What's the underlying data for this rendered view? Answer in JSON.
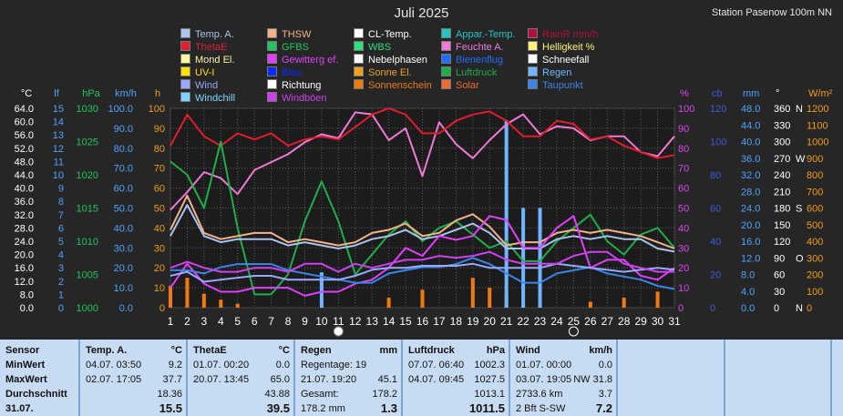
{
  "chart_data": {
    "type": "line",
    "title": "Juli 2025",
    "station": "Station Pasenow 100m NN",
    "x": [
      "1",
      "2",
      "3",
      "4",
      "5",
      "6",
      "7",
      "8",
      "9",
      "10",
      "11",
      "12",
      "13",
      "14",
      "15",
      "16",
      "17",
      "18",
      "19",
      "20",
      "21",
      "22",
      "23",
      "24",
      "25",
      "26",
      "27",
      "28",
      "29",
      "30",
      "31"
    ],
    "axes_left": [
      {
        "unit": "°C",
        "ticks": [
          "64.0",
          "60.0",
          "56.0",
          "52.0",
          "48.0",
          "44.0",
          "40.0",
          "36.0",
          "32.0",
          "28.0",
          "24.0",
          "20.0",
          "16.0",
          "12.0",
          "8.0",
          "0.0"
        ],
        "color": "#ffffff"
      },
      {
        "unit": "lf",
        "ticks": [
          "15",
          "14",
          "13",
          "12",
          "11",
          "10",
          "9",
          "8",
          "7",
          "6",
          "5",
          "4",
          "3",
          "2",
          "1",
          "0"
        ],
        "color": "#4fa3ff"
      },
      {
        "unit": "hPa",
        "ticks": [
          "1030",
          "1025",
          "1020",
          "1015",
          "1010",
          "1005",
          "1000"
        ],
        "color": "#22c55e"
      },
      {
        "unit": "km/h",
        "ticks": [
          "100.0",
          "90.0",
          "80.0",
          "70.0",
          "60.0",
          "50.0",
          "40.0",
          "30.0",
          "20.0",
          "10.0",
          "0.0"
        ],
        "color": "#4fa3ff"
      },
      {
        "unit": "h",
        "ticks": [
          "100",
          "90",
          "80",
          "70",
          "60",
          "50",
          "40",
          "30",
          "20",
          "10",
          "0"
        ],
        "color": "#f39c12"
      }
    ],
    "axes_right": [
      {
        "unit": "%",
        "ticks": [
          "100",
          "90",
          "80",
          "70",
          "60",
          "50",
          "40",
          "30",
          "20",
          "10",
          "0"
        ],
        "color": "#d946ef"
      },
      {
        "unit": "cb",
        "ticks": [
          "120",
          "100",
          "80",
          "60",
          "40",
          "20",
          "0"
        ],
        "color": "#3b5bdb"
      },
      {
        "unit": "mm",
        "ticks": [
          "48.0",
          "44.0",
          "40.0",
          "36.0",
          "32.0",
          "28.0",
          "24.0",
          "20.0",
          "16.0",
          "12.0",
          "8.0",
          "4.0",
          "0.0"
        ],
        "color": "#4fa3ff"
      },
      {
        "unit": "°",
        "ticks": [
          "360",
          "330",
          "300",
          "270",
          "240",
          "210",
          "180",
          "150",
          "120",
          "90",
          "60",
          "30",
          "0"
        ],
        "dirs": [
          "N",
          "",
          "",
          "W",
          "",
          "",
          "S",
          "",
          "",
          "O",
          "",
          "",
          "N"
        ],
        "color": "#ffffff"
      },
      {
        "unit": "W/m²",
        "ticks": [
          "1200",
          "1100",
          "1000",
          "900",
          "800",
          "700",
          "600",
          "500",
          "400",
          "300",
          "200",
          "100",
          "0"
        ],
        "color": "#f39c12"
      }
    ],
    "legend": [
      {
        "label": "Temp. A.",
        "color": "#a9c4ef"
      },
      {
        "label": "THSW",
        "color": "#f2b28a"
      },
      {
        "label": "CL-Temp.",
        "color": "#ffffff"
      },
      {
        "label": "Appar.-Temp.",
        "color": "#22c5c5"
      },
      {
        "label": "RainR mm/h",
        "color": "#b5103a"
      },
      {
        "label": "ThetaE",
        "color": "#e11d2e"
      },
      {
        "label": "GFBS",
        "color": "#22c55e"
      },
      {
        "label": "WBS",
        "color": "#2ee07a"
      },
      {
        "label": "Feuchte A.",
        "color": "#f07ad6"
      },
      {
        "label": "Helligkeit %",
        "color": "#fff27a"
      },
      {
        "label": "Mond El.",
        "color": "#fff6a0"
      },
      {
        "label": "Gewitterg ef.",
        "color": "#e040fb"
      },
      {
        "label": "Nebelphasen",
        "color": "#ffffff"
      },
      {
        "label": "Bienenflug",
        "color": "#1e6fff"
      },
      {
        "label": "Schneefall",
        "color": "#ffffff"
      },
      {
        "label": "UV-I",
        "color": "#ffe000"
      },
      {
        "label": "Blau",
        "color": "#0a2aff"
      },
      {
        "label": "Sonne El.",
        "color": "#f0a020"
      },
      {
        "label": "Luftdruck",
        "color": "#1fae4a"
      },
      {
        "label": "Regen",
        "color": "#6fb6ff"
      },
      {
        "label": "Wind",
        "color": "#9aa8ff"
      },
      {
        "label": "Richtung",
        "color": "#ffffff"
      },
      {
        "label": "Sonnenschein",
        "color": "#f07a10"
      },
      {
        "label": "Solar",
        "color": "#f06a30"
      },
      {
        "label": "Taupunkt",
        "color": "#3a86e8"
      },
      {
        "label": "Windchill",
        "color": "#7fd4ff"
      },
      {
        "label": "Windböen",
        "color": "#d040f0"
      }
    ],
    "series": [
      {
        "name": "Feuchte A.",
        "unit": "%",
        "axis": "%",
        "color": "#f07ad6",
        "values": [
          49,
          58,
          68,
          65,
          57,
          69,
          73,
          77,
          83,
          87,
          85,
          98,
          97,
          84,
          90,
          66,
          93,
          82,
          75,
          84,
          92,
          97,
          87,
          91,
          90,
          84,
          86,
          86,
          78,
          76,
          86
        ]
      },
      {
        "name": "ThetaE",
        "unit": "°C",
        "axis": "°C",
        "color": "#e11d2e",
        "values": [
          52,
          62,
          55,
          52,
          56,
          54,
          56,
          52,
          54,
          55,
          54,
          58,
          62,
          65,
          62,
          56,
          56,
          60,
          62,
          63,
          60,
          55,
          55,
          60,
          59,
          54,
          55,
          52,
          50,
          48,
          49
        ]
      },
      {
        "name": "Luftdruck",
        "unit": "hPa",
        "axis": "hPa",
        "color": "#1fae4a",
        "values": [
          1022,
          1020,
          1015,
          1025,
          1012,
          1002,
          1002,
          1005,
          1013,
          1019,
          1013,
          1005,
          1008,
          1011,
          1013,
          1010,
          1012,
          1013,
          1011,
          1009,
          1010,
          1007,
          1007,
          1010,
          1012,
          1014,
          1010,
          1008,
          1011,
          1012,
          1009
        ]
      },
      {
        "name": "Temp. A.",
        "unit": "°C",
        "axis": "°C",
        "color": "#a9c4ef",
        "values": [
          23,
          33,
          23,
          21,
          22,
          22,
          22,
          20,
          21,
          20,
          19,
          20,
          22,
          23,
          25,
          22,
          23,
          25,
          27,
          24,
          19,
          19,
          19,
          22,
          23,
          22,
          23,
          22,
          22,
          19,
          18
        ]
      },
      {
        "name": "THSW",
        "unit": "°C",
        "axis": "°C",
        "color": "#f2b28a",
        "values": [
          25,
          36,
          24,
          22,
          23,
          24,
          24,
          21,
          22,
          21,
          20,
          21,
          24,
          25,
          27,
          23,
          24,
          28,
          30,
          26,
          20,
          21,
          21,
          24,
          25,
          24,
          25,
          24,
          23,
          21,
          19
        ]
      },
      {
        "name": "Gewitterg ef.",
        "unit": "%",
        "axis": "%",
        "color": "#e040fb",
        "values": [
          10,
          22,
          12,
          8,
          8,
          10,
          10,
          10,
          6,
          8,
          8,
          12,
          14,
          20,
          30,
          26,
          36,
          34,
          36,
          46,
          44,
          30,
          30,
          40,
          46,
          20,
          24,
          24,
          16,
          14,
          20
        ]
      },
      {
        "name": "Taupunkt",
        "unit": "°C",
        "axis": "°C",
        "color": "#3a86e8",
        "values": [
          12,
          12,
          11,
          13,
          14,
          14,
          14,
          12,
          11,
          10,
          9,
          8,
          8,
          11,
          12,
          13,
          13,
          14,
          16,
          14,
          11,
          8,
          8,
          11,
          12,
          13,
          11,
          10,
          9,
          7,
          6
        ]
      },
      {
        "name": "Wind",
        "unit": "km/h",
        "axis": "km/h",
        "color": "#9aa8ff",
        "values": [
          16,
          18,
          13,
          14,
          15,
          16,
          16,
          14,
          14,
          14,
          14,
          16,
          19,
          20,
          20,
          21,
          21,
          21,
          22,
          20,
          20,
          20,
          20,
          22,
          21,
          20,
          19,
          18,
          19,
          20,
          19
        ]
      },
      {
        "name": "Windböen",
        "unit": "km/h",
        "axis": "km/h",
        "color": "#d040f0",
        "values": [
          20,
          23,
          20,
          18,
          18,
          20,
          20,
          18,
          22,
          22,
          18,
          22,
          20,
          22,
          24,
          24,
          26,
          25,
          26,
          28,
          24,
          22,
          22,
          22,
          26,
          28,
          28,
          22,
          20,
          18,
          18
        ]
      },
      {
        "name": "Sonnenschein",
        "unit": "h",
        "axis": "h",
        "color": "#f07a10",
        "bars": [
          11,
          15,
          7,
          4,
          2,
          0,
          0,
          0,
          0,
          0,
          0,
          0,
          0,
          5,
          0,
          9,
          0,
          0,
          15,
          10,
          7,
          1,
          4,
          0,
          0,
          3,
          0,
          5,
          0,
          8,
          0
        ]
      },
      {
        "name": "Regen",
        "unit": "mm",
        "axis": "mm",
        "color": "#6fb6ff",
        "bars": [
          0,
          0,
          0,
          0,
          0,
          0,
          0,
          0,
          0,
          8.5,
          0,
          0,
          0,
          0,
          0,
          0,
          0,
          0,
          0,
          0,
          45.1,
          24,
          24,
          0,
          0,
          0,
          0,
          0,
          0,
          0,
          0
        ]
      }
    ],
    "ylim": [
      0,
      64
    ],
    "grid": true
  },
  "table": {
    "row_labels": [
      "Sensor",
      "MinWert",
      "MaxWert",
      "Durchschnitt",
      "31.07."
    ],
    "cols": [
      {
        "title": "Temp. A.",
        "unit": "°C",
        "rows": [
          [
            "04.07. 03:50",
            "9.2"
          ],
          [
            "02.07. 17:05",
            "37.7"
          ],
          [
            "",
            "18.36"
          ],
          [
            "",
            "15.5"
          ]
        ]
      },
      {
        "title": "ThetaE",
        "unit": "°C",
        "rows": [
          [
            "01.07. 00:20",
            "0.0"
          ],
          [
            "20.07. 13:45",
            "65.0"
          ],
          [
            "",
            "43.88"
          ],
          [
            "",
            "39.5"
          ]
        ]
      },
      {
        "title": "Regen",
        "unit": "mm",
        "rows": [
          [
            "Regentage: 19",
            ""
          ],
          [
            "21.07. 19:20",
            "45.1"
          ],
          [
            "Gesamt:",
            "178.2"
          ],
          [
            "178.2 mm",
            "1.3"
          ]
        ]
      },
      {
        "title": "Luftdruck",
        "unit": "hPa",
        "rows": [
          [
            "07.07. 06:40",
            "1002.3"
          ],
          [
            "04.07. 09:45",
            "1027.5"
          ],
          [
            "",
            "1013.1"
          ],
          [
            "",
            "1011.5"
          ]
        ]
      },
      {
        "title": "Wind",
        "unit": "km/h",
        "rows": [
          [
            "01.07. 00:00",
            "0.0"
          ],
          [
            "03.07. 19:05",
            "NW 31.8"
          ],
          [
            "2733.6 km",
            "3.7"
          ],
          [
            "2 Bft S-SW",
            "7.2"
          ]
        ]
      }
    ]
  }
}
